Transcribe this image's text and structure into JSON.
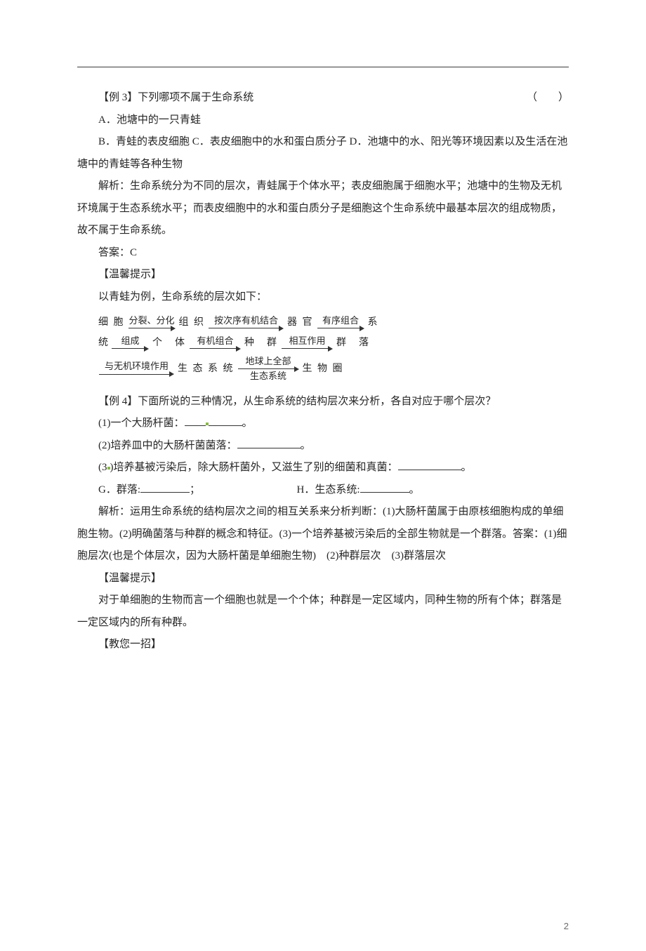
{
  "ex3": {
    "title": "【例 3】下列哪项不属于生命系统",
    "paren": "（　　）",
    "optA": "A．池塘中的一只青蛙",
    "optRest": "B．青蛙的表皮细胞 C．表皮细胞中的水和蛋白质分子 D．池塘中的水、阳光等环境因素以及生活在池塘中的青蛙等各种生物",
    "expl": "解析：生命系统分为不同的层次，青蛙属于个体水平；表皮细胞属于细胞水平；池塘中的生物及无机环境属于生态系统水平；而表皮细胞中的水和蛋白质分子是细胞这个生命系统中最基本层次的组成物质，故不属于生命系统。",
    "ans": "答案：C",
    "tipTitle": "【温馨提示】",
    "tipLine": "以青蛙为例，生命系统的层次如下："
  },
  "diagram": {
    "n1": "细 胞",
    "a1": "分裂、分化",
    "n2": "组 织",
    "a2": "按次序有机结合",
    "n3": "器 官",
    "a3": "有序组合",
    "n4": "系",
    "n5": "统",
    "a4": "组成",
    "n6": "个　体",
    "a5": "有机组合",
    "n7": "种　群",
    "a6": "相互作用",
    "n8": "群　落",
    "a7": "与无机环境作用",
    "n9": "生 态 系 统",
    "a8t": "地球上全部",
    "a8b": "生态系统",
    "n10": "生 物 圈"
  },
  "ex4": {
    "title": "【例 4】下面所说的三种情况，从生命系统的结构层次来分析，各自对应于哪个层次？",
    "q1a": "(1)一个大肠杆菌：",
    "q1b": "。",
    "q2a": "(2)培养皿中的大肠杆菌菌落：",
    "q2b": "。",
    "q3a": "(3",
    "q3b": ")培养基被污染后，除大肠杆菌外，又滋生了别的细菌和真菌：",
    "q3c": "。",
    "gA": "G．群落:",
    "gB": "；",
    "hA": "H．生态系统:",
    "hB": "。",
    "expl": "解析：运用生命系统的结构层次之间的相互关系来分析判断：(1)大肠杆菌属于由原核细胞构成的单细胞生物。(2)明确菌落与种群的概念和特征。(3)一个培养基被污染后的全部生物就是一个群落。答案：(1)细胞层次(也是个体层次，因为大肠杆菌是单细胞生物)　(2)种群层次　(3)群落层次",
    "tipTitle": "【温馨提示】",
    "tipLine": "对于单细胞的生物而言一个细胞也就是一个个体；种群是一定区域内，同种生物的所有个体；群落是一定区域内的所有种群。",
    "trick": "【教您一招】"
  },
  "pagenum": "2",
  "widths": {
    "a1": 60,
    "a2": 100,
    "a3": 60,
    "a4": 46,
    "a5": 66,
    "a6": 66,
    "a7": 100,
    "a8": 80
  }
}
